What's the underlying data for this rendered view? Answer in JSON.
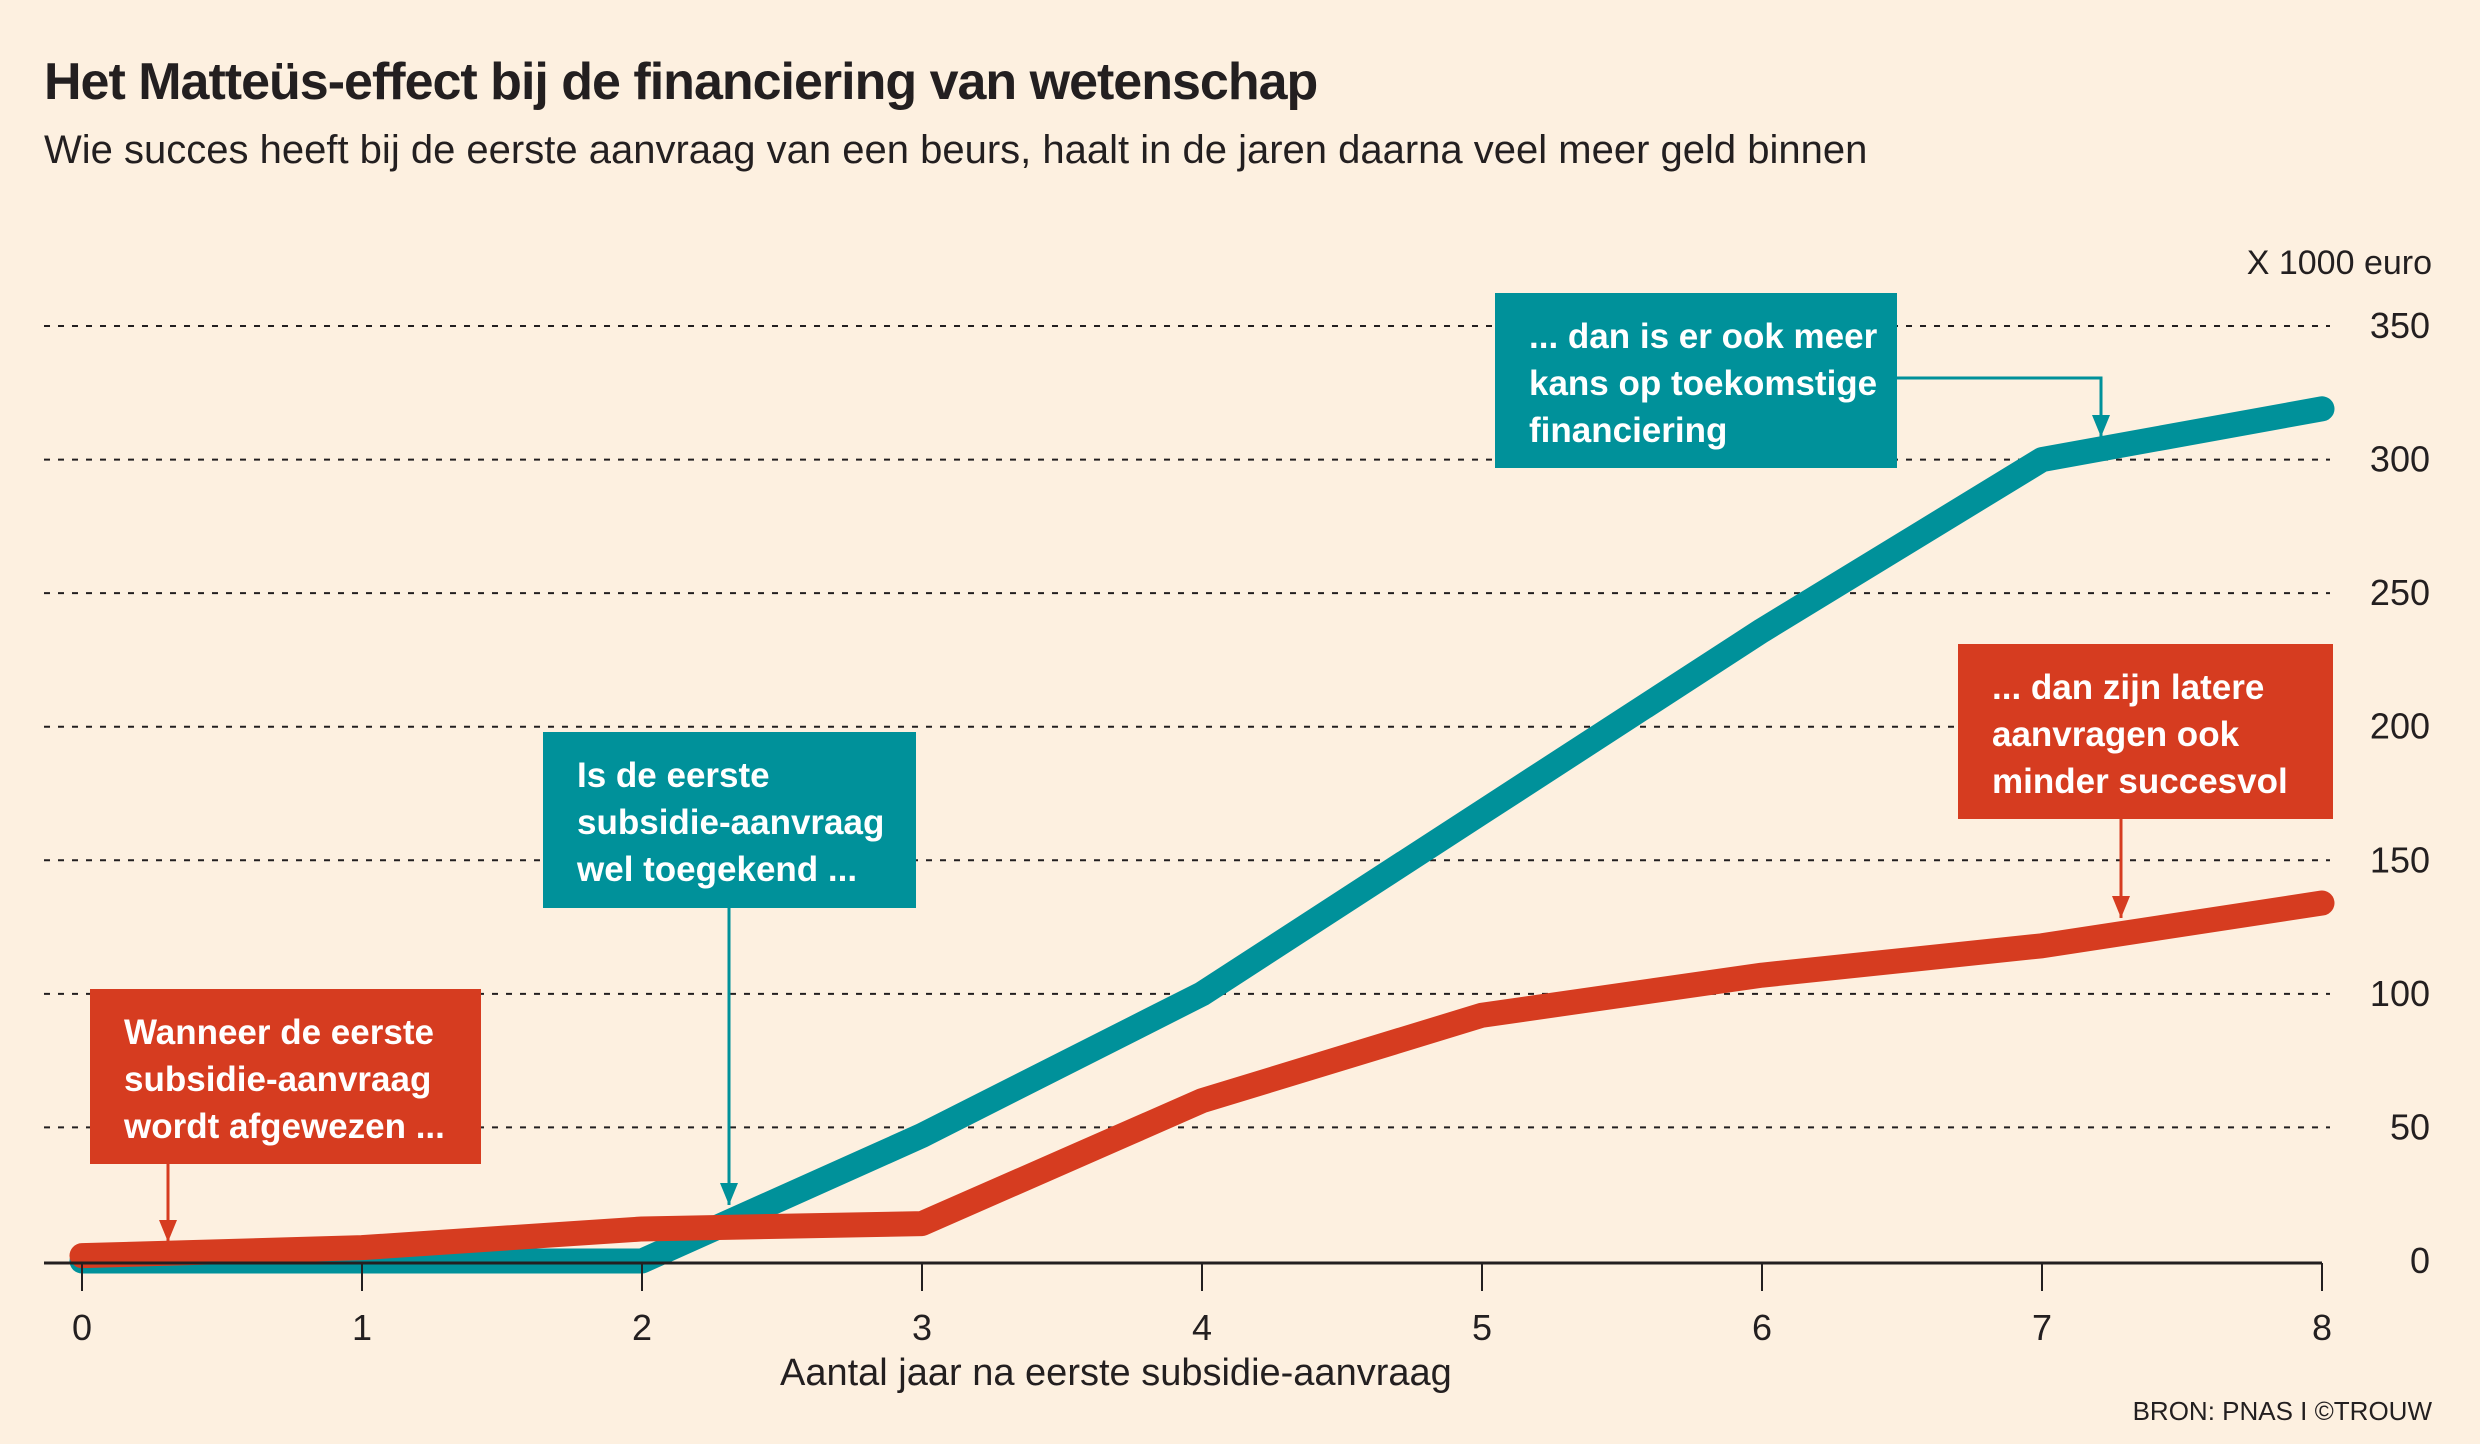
{
  "header": {
    "title": "Het Matteüs-effect bij de financiering van wetenschap",
    "subtitle": "Wie succes heeft bij de eerste aanvraag van een beurs, haalt in de jaren daarna veel meer geld binnen"
  },
  "chart_data": {
    "type": "line",
    "title": "Het Matteüs-effect bij de financiering van wetenschap",
    "xlabel": "Aantal jaar na eerste subsidie-aanvraag",
    "ylabel": "X 1000 euro",
    "x": [
      0,
      1,
      2,
      3,
      4,
      5,
      6,
      7,
      8
    ],
    "xlim": [
      0,
      8
    ],
    "ylim": [
      0,
      350
    ],
    "yticks": [
      0,
      50,
      100,
      150,
      200,
      250,
      300,
      350
    ],
    "xticks": [
      0,
      1,
      2,
      3,
      4,
      5,
      6,
      7,
      8
    ],
    "grid": true,
    "series": [
      {
        "name": "Eerste aanvraag toegekend",
        "color": "#00919a",
        "values": [
          0,
          0,
          0,
          47,
          100,
          168,
          236,
          300,
          319
        ]
      },
      {
        "name": "Eerste aanvraag afgewezen",
        "color": "#d63c20",
        "values": [
          2,
          5,
          12,
          14,
          60,
          92,
          107,
          118,
          134
        ]
      }
    ],
    "annotations": [
      "Wanneer de eerste subsidie-aanvraag wordt afgewezen ...",
      "Is de eerste subsidie-aanvraag wel toegekend ...",
      "... dan is er ook meer kans op toekomstige financiering",
      "... dan zijn latere aanvragen ook minder succesvol"
    ]
  },
  "annotations": {
    "red1": [
      "Wanneer de eerste",
      "subsidie-aanvraag",
      "wordt afgewezen ..."
    ],
    "teal1": [
      "Is de eerste",
      "subsidie-aanvraag",
      "wel toegekend ..."
    ],
    "teal2": [
      "... dan is er ook meer",
      "kans op toekomstige",
      "financiering"
    ],
    "red2": [
      "... dan zijn latere",
      "aanvragen ook",
      "minder succesvol"
    ]
  },
  "source": "BRON: PNAS I ©TROUW"
}
